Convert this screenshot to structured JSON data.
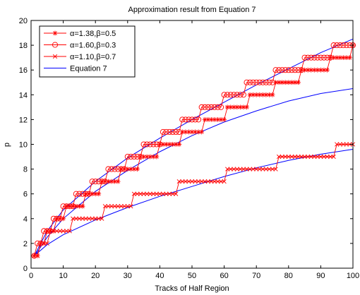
{
  "chart_data": {
    "type": "line",
    "title": "Approximation result from Equation 7",
    "xlabel": "Tracks of Half Region",
    "ylabel": "p",
    "xlim": [
      0,
      100
    ],
    "ylim": [
      0,
      20
    ],
    "xticks": [
      0,
      10,
      20,
      30,
      40,
      50,
      60,
      70,
      80,
      90,
      100
    ],
    "yticks": [
      0,
      2,
      4,
      6,
      8,
      10,
      12,
      14,
      16,
      18,
      20
    ],
    "legend_position": "top-left",
    "grid": false,
    "series": [
      {
        "name": "α=1.38,β=0.5",
        "marker": "asterisk",
        "color": "#ff0000",
        "steps": [
          [
            1,
            1
          ],
          [
            3,
            2
          ],
          [
            5,
            3
          ],
          [
            8,
            4
          ],
          [
            11,
            5
          ],
          [
            17,
            6
          ],
          [
            22,
            7
          ],
          [
            28,
            8
          ],
          [
            34,
            9
          ],
          [
            40,
            10
          ],
          [
            47,
            11
          ],
          [
            54,
            12
          ],
          [
            61,
            13
          ],
          [
            68,
            14
          ],
          [
            76,
            15
          ],
          [
            84,
            16
          ],
          [
            93,
            17
          ],
          [
            100,
            18
          ]
        ],
        "fit": [
          [
            1,
            0.95
          ],
          [
            5,
            2.5
          ],
          [
            10,
            4.0
          ],
          [
            20,
            6.2
          ],
          [
            30,
            7.9
          ],
          [
            40,
            9.4
          ],
          [
            50,
            10.7
          ],
          [
            60,
            11.8
          ],
          [
            70,
            12.7
          ],
          [
            80,
            13.5
          ],
          [
            90,
            14.1
          ],
          [
            100,
            14.5
          ]
        ]
      },
      {
        "name": "α=1.60,β=0.3",
        "marker": "circle",
        "color": "#ff0000",
        "steps": [
          [
            1,
            1
          ],
          [
            2,
            2
          ],
          [
            4,
            3
          ],
          [
            7,
            4
          ],
          [
            10,
            5
          ],
          [
            14,
            6
          ],
          [
            19,
            7
          ],
          [
            24,
            8
          ],
          [
            30,
            9
          ],
          [
            35,
            10
          ],
          [
            41,
            11
          ],
          [
            47,
            12
          ],
          [
            53,
            13
          ],
          [
            60,
            14
          ],
          [
            67,
            15
          ],
          [
            76,
            16
          ],
          [
            85,
            17
          ],
          [
            94,
            18
          ],
          [
            100,
            18
          ]
        ],
        "fit": [
          [
            1,
            1.0
          ],
          [
            5,
            3.0
          ],
          [
            10,
            4.7
          ],
          [
            20,
            7.0
          ],
          [
            30,
            8.9
          ],
          [
            40,
            10.5
          ],
          [
            50,
            12.0
          ],
          [
            60,
            13.4
          ],
          [
            70,
            14.8
          ],
          [
            80,
            16.1
          ],
          [
            90,
            17.4
          ],
          [
            100,
            18.5
          ]
        ]
      },
      {
        "name": "α=1.10,β=0.7",
        "marker": "x",
        "color": "#ff0000",
        "steps": [
          [
            1,
            1
          ],
          [
            3,
            2
          ],
          [
            6,
            3
          ],
          [
            13,
            4
          ],
          [
            23,
            5
          ],
          [
            32,
            6
          ],
          [
            46,
            7
          ],
          [
            61,
            8
          ],
          [
            77,
            9
          ],
          [
            95,
            10
          ],
          [
            100,
            10
          ]
        ],
        "fit": [
          [
            1,
            1.0
          ],
          [
            5,
            1.9
          ],
          [
            10,
            2.7
          ],
          [
            20,
            3.9
          ],
          [
            30,
            4.9
          ],
          [
            40,
            5.8
          ],
          [
            50,
            6.6
          ],
          [
            60,
            7.4
          ],
          [
            70,
            8.1
          ],
          [
            80,
            8.7
          ],
          [
            90,
            9.2
          ],
          [
            100,
            9.6
          ]
        ]
      },
      {
        "name": "Equation 7",
        "marker": "none",
        "color": "#0000ff"
      }
    ]
  }
}
